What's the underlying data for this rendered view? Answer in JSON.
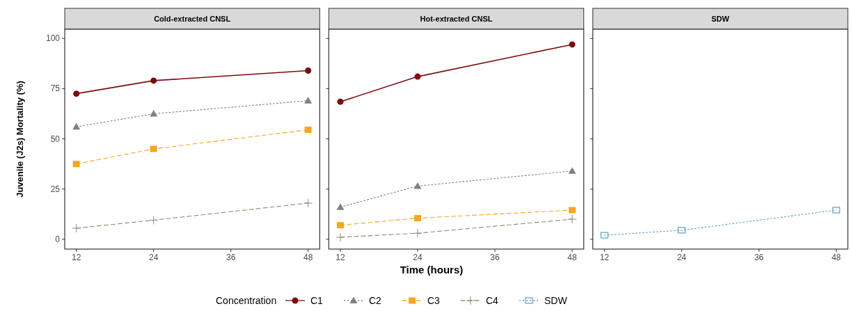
{
  "chart_data": [
    {
      "type": "line",
      "title": "Cold-extracted CNSL",
      "ylabel": "Juvenile (J2s) Mortality (%)",
      "legend_title": "Concentration",
      "legend": "bottom",
      "x": [
        12,
        24,
        48
      ],
      "xlim": [
        10.2,
        49.8
      ],
      "xticks": [
        12,
        24,
        36,
        48
      ],
      "ylim": [
        -4.9,
        104.6
      ],
      "yticks": [
        0,
        25,
        50,
        75,
        100
      ],
      "series": [
        {
          "name": "C1",
          "color": "#7b0c0c",
          "marker": "circle",
          "line_style": "solid",
          "values": [
            72.5,
            79,
            84
          ]
        },
        {
          "name": "C2",
          "color": "#808080",
          "marker": "triangle",
          "line_style": "dotted",
          "values": [
            56,
            62.5,
            69
          ]
        },
        {
          "name": "C3",
          "color": "#f5a623",
          "marker": "square",
          "line_style": "dashed",
          "values": [
            37.5,
            45,
            54.5
          ]
        },
        {
          "name": "C4",
          "color": "#8c8c7a",
          "marker": "cross",
          "line_style": "dashed",
          "values": [
            5.5,
            9.5,
            18
          ]
        }
      ]
    },
    {
      "type": "line",
      "title": "Hot-extracted CNSL",
      "xlabel": "Time (hours)",
      "legend": "bottom",
      "tick_labels": "x",
      "x": [
        12,
        24,
        48
      ],
      "xlim": [
        10.2,
        49.8
      ],
      "xticks": [
        12,
        24,
        36,
        48
      ],
      "ylim": [
        -4.9,
        104.6
      ],
      "yticks": [
        0,
        25,
        50,
        75,
        100
      ],
      "series": [
        {
          "name": "C1",
          "color": "#7b0c0c",
          "marker": "circle",
          "line_style": "solid",
          "values": [
            68.5,
            81,
            97
          ]
        },
        {
          "name": "C2",
          "color": "#808080",
          "marker": "triangle",
          "line_style": "dotted",
          "values": [
            16,
            26.5,
            34
          ]
        },
        {
          "name": "C3",
          "color": "#f5a623",
          "marker": "square",
          "line_style": "dashed",
          "values": [
            7,
            10.5,
            14.5
          ]
        },
        {
          "name": "C4",
          "color": "#8c8c7a",
          "marker": "cross",
          "line_style": "dashed",
          "values": [
            1,
            3,
            10
          ]
        }
      ]
    },
    {
      "type": "line",
      "title": "SDW",
      "legend": "bottom",
      "tick_labels": "x",
      "x": [
        12,
        24,
        48
      ],
      "xlim": [
        10.2,
        49.8
      ],
      "xticks": [
        12,
        24,
        36,
        48
      ],
      "ylim": [
        -4.9,
        104.6
      ],
      "yticks": [
        0,
        25,
        50,
        75,
        100
      ],
      "series": [
        {
          "name": "SDW",
          "color": "#5f9fbf",
          "marker": "square",
          "line_style": "dotted",
          "values": [
            2,
            4.5,
            14.5
          ]
        }
      ]
    }
  ]
}
